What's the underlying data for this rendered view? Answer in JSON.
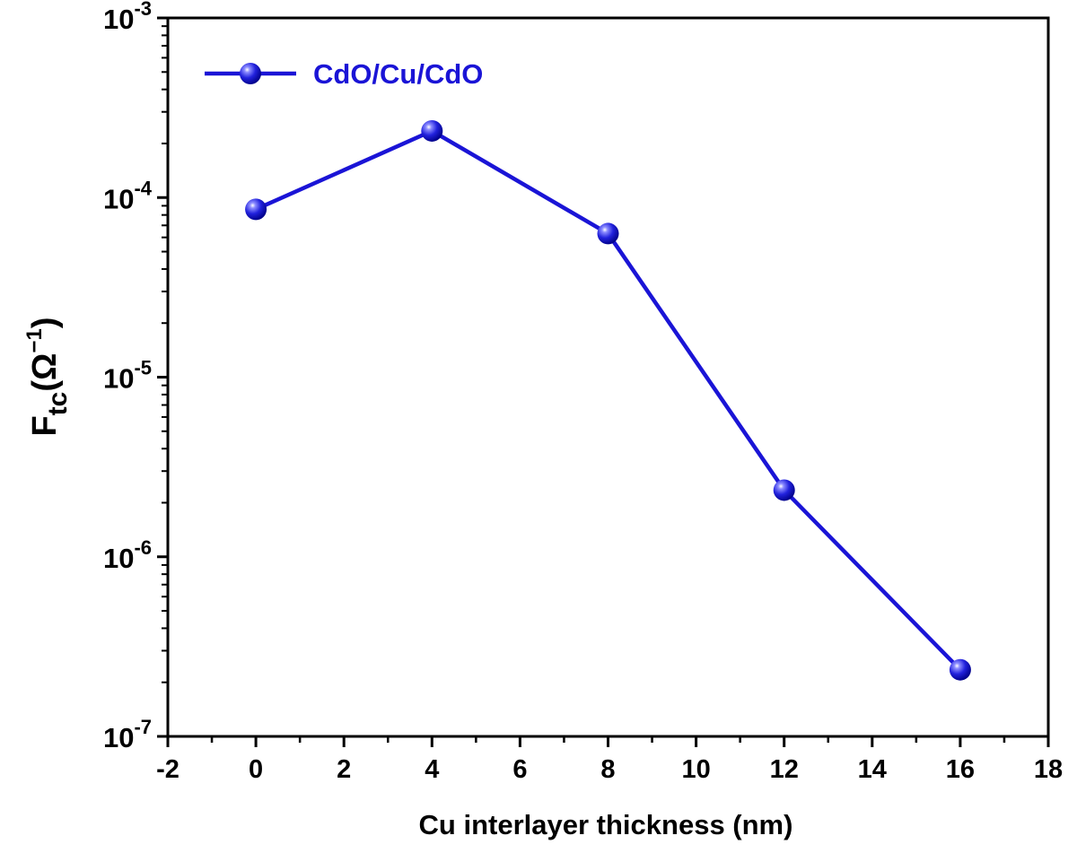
{
  "chart_data": {
    "type": "line",
    "title": "",
    "xlabel": "Cu interlayer thickness (nm)",
    "ylabel": {
      "main": "F",
      "sub": "tc",
      "unit_prefix": "(Ω",
      "unit_sup": "−1",
      "unit_suffix": ")"
    },
    "xlim": [
      -2,
      18
    ],
    "ylim": [
      1e-07,
      0.001
    ],
    "yscale": "log",
    "x_ticks": [
      -2,
      0,
      2,
      4,
      6,
      8,
      10,
      12,
      14,
      16,
      18
    ],
    "x_tick_labels": [
      "-2",
      "0",
      "2",
      "4",
      "6",
      "8",
      "10",
      "12",
      "14",
      "16",
      "18"
    ],
    "y_ticks": [
      {
        "value": 0.001,
        "base": "10",
        "exp": "-3"
      },
      {
        "value": 0.0001,
        "base": "10",
        "exp": "-4"
      },
      {
        "value": 1e-05,
        "base": "10",
        "exp": "-5"
      },
      {
        "value": 1e-06,
        "base": "10",
        "exp": "-6"
      },
      {
        "value": 1e-07,
        "base": "10",
        "exp": "-7"
      }
    ],
    "grid": false,
    "legend_position": "top-left",
    "series": [
      {
        "name": "CdO/Cu/CdO",
        "color": "#1a14d6",
        "marker": "sphere",
        "x": [
          0,
          4,
          8,
          12,
          16
        ],
        "y": [
          8.6e-05,
          0.000235,
          6.3e-05,
          2.35e-06,
          2.35e-07
        ]
      }
    ]
  }
}
